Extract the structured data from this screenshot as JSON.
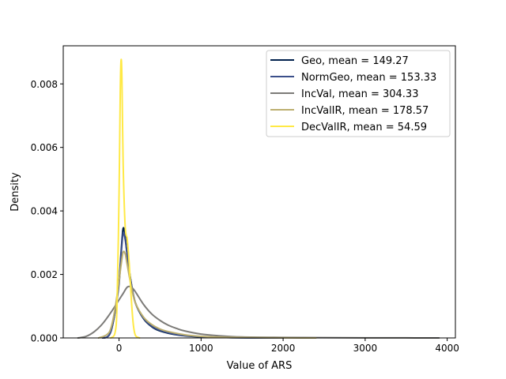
{
  "chart_data": {
    "type": "line",
    "title": "",
    "xlabel": "Value of ARS",
    "ylabel": "Density",
    "xlim": [
      -680,
      4100
    ],
    "ylim": [
      0,
      0.0092
    ],
    "xticks": [
      0,
      1000,
      2000,
      3000,
      4000
    ],
    "xtick_labels": [
      "0",
      "1000",
      "2000",
      "3000",
      "4000"
    ],
    "yticks": [
      0,
      0.002,
      0.004,
      0.006,
      0.008
    ],
    "ytick_labels": [
      "0.000",
      "0.002",
      "0.004",
      "0.006",
      "0.008"
    ],
    "grid": false,
    "legend_position": "top-right",
    "series": [
      {
        "name": "Geo, mean = 149.27",
        "color": "#00204c",
        "points": [
          [
            -200,
            0
          ],
          [
            -150,
            2e-05
          ],
          [
            -100,
            0.0002
          ],
          [
            -50,
            0.0008
          ],
          [
            0,
            0.0018
          ],
          [
            25,
            0.0027
          ],
          [
            50,
            0.00345
          ],
          [
            75,
            0.0032
          ],
          [
            100,
            0.0026
          ],
          [
            150,
            0.0017
          ],
          [
            200,
            0.0011
          ],
          [
            300,
            0.0006
          ],
          [
            400,
            0.00035
          ],
          [
            500,
            0.00022
          ],
          [
            700,
            0.0001
          ],
          [
            1000,
            3e-05
          ],
          [
            1400,
            1e-05
          ],
          [
            2000,
            0
          ]
        ]
      },
      {
        "name": "NormGeo, mean = 153.33",
        "color": "#3b4f8a",
        "points": [
          [
            -200,
            0
          ],
          [
            -150,
            2e-05
          ],
          [
            -100,
            0.0002
          ],
          [
            -50,
            0.0008
          ],
          [
            0,
            0.0017
          ],
          [
            25,
            0.0026
          ],
          [
            50,
            0.0033
          ],
          [
            75,
            0.0031
          ],
          [
            100,
            0.0026
          ],
          [
            150,
            0.0017
          ],
          [
            200,
            0.0011
          ],
          [
            300,
            0.00062
          ],
          [
            400,
            0.00037
          ],
          [
            500,
            0.00024
          ],
          [
            700,
            0.00011
          ],
          [
            1000,
            4e-05
          ],
          [
            1400,
            1e-05
          ],
          [
            2000,
            0
          ]
        ]
      },
      {
        "name": "IncVal, mean = 304.33",
        "color": "#7c7b78",
        "points": [
          [
            -500,
            0
          ],
          [
            -400,
            5e-05
          ],
          [
            -300,
            0.0002
          ],
          [
            -200,
            0.00045
          ],
          [
            -100,
            0.0008
          ],
          [
            0,
            0.0012
          ],
          [
            50,
            0.0014
          ],
          [
            100,
            0.0016
          ],
          [
            150,
            0.0016
          ],
          [
            200,
            0.00145
          ],
          [
            300,
            0.00105
          ],
          [
            400,
            0.00075
          ],
          [
            500,
            0.00055
          ],
          [
            600,
            0.0004
          ],
          [
            700,
            0.0003
          ],
          [
            800,
            0.00022
          ],
          [
            1000,
            0.00012
          ],
          [
            1200,
            7e-05
          ],
          [
            1500,
            3e-05
          ],
          [
            2000,
            1.5e-05
          ],
          [
            2500,
            8e-06
          ],
          [
            3000,
            4e-06
          ],
          [
            3500,
            2e-06
          ],
          [
            3900,
            0
          ]
        ]
      },
      {
        "name": "IncValIR, mean = 178.57",
        "color": "#bcaf6f",
        "points": [
          [
            -250,
            0
          ],
          [
            -150,
            0.0001
          ],
          [
            -100,
            0.0003
          ],
          [
            -50,
            0.0009
          ],
          [
            0,
            0.0018
          ],
          [
            25,
            0.0023
          ],
          [
            50,
            0.0027
          ],
          [
            75,
            0.00265
          ],
          [
            100,
            0.0023
          ],
          [
            150,
            0.0016
          ],
          [
            200,
            0.0011
          ],
          [
            300,
            0.00065
          ],
          [
            400,
            0.00042
          ],
          [
            500,
            0.00028
          ],
          [
            600,
            0.0002
          ],
          [
            800,
            0.0001
          ],
          [
            1000,
            5e-05
          ],
          [
            1300,
            2e-05
          ],
          [
            1800,
            5e-06
          ],
          [
            2400,
            0
          ]
        ]
      },
      {
        "name": "DecValIR, mean = 54.59",
        "color": "#ffe945",
        "points": [
          [
            -100,
            0
          ],
          [
            -50,
            0.00015
          ],
          [
            -25,
            0.001
          ],
          [
            0,
            0.0045
          ],
          [
            15,
            0.0078
          ],
          [
            25,
            0.00875
          ],
          [
            35,
            0.0082
          ],
          [
            50,
            0.0055
          ],
          [
            75,
            0.0035
          ],
          [
            100,
            0.0031
          ],
          [
            125,
            0.0023
          ],
          [
            150,
            0.0012
          ],
          [
            175,
            0.0004
          ],
          [
            200,
            8e-05
          ],
          [
            250,
            0
          ]
        ]
      }
    ]
  }
}
